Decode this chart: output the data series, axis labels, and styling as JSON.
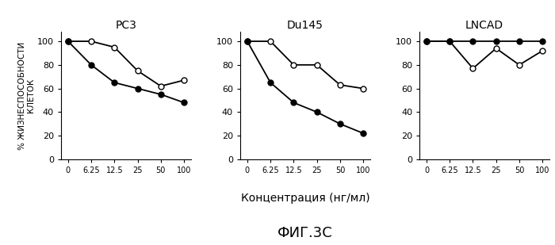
{
  "x_positions": [
    0,
    1,
    2,
    3,
    4,
    5
  ],
  "x_labels": [
    "0",
    "6.25",
    "12.5",
    "25",
    "50",
    "100"
  ],
  "pc3": {
    "open": [
      100,
      100,
      95,
      75,
      62,
      67
    ],
    "filled": [
      100,
      80,
      65,
      60,
      55,
      48
    ]
  },
  "du145": {
    "open": [
      100,
      100,
      80,
      80,
      63,
      60
    ],
    "filled": [
      100,
      65,
      48,
      40,
      30,
      22
    ]
  },
  "lncad": {
    "open": [
      100,
      100,
      77,
      94,
      80,
      92
    ],
    "filled": [
      100,
      100,
      100,
      100,
      100,
      100
    ]
  },
  "titles": [
    "PC3",
    "Du145",
    "LNCAD"
  ],
  "xlabel": "Концентрация (нг/мл)",
  "ylabel_line1": "% ЖИЗНЕСПОСОБНОСТИ",
  "ylabel_line2": "КЛЕТОК",
  "figure_title": "ФИГ.3C",
  "ylim": [
    0,
    108
  ],
  "yticks": [
    0,
    20,
    40,
    60,
    80,
    100
  ],
  "open_color": "white",
  "filled_color": "black",
  "line_color": "black",
  "marker_size": 5,
  "line_width": 1.3,
  "bg_color": "white"
}
